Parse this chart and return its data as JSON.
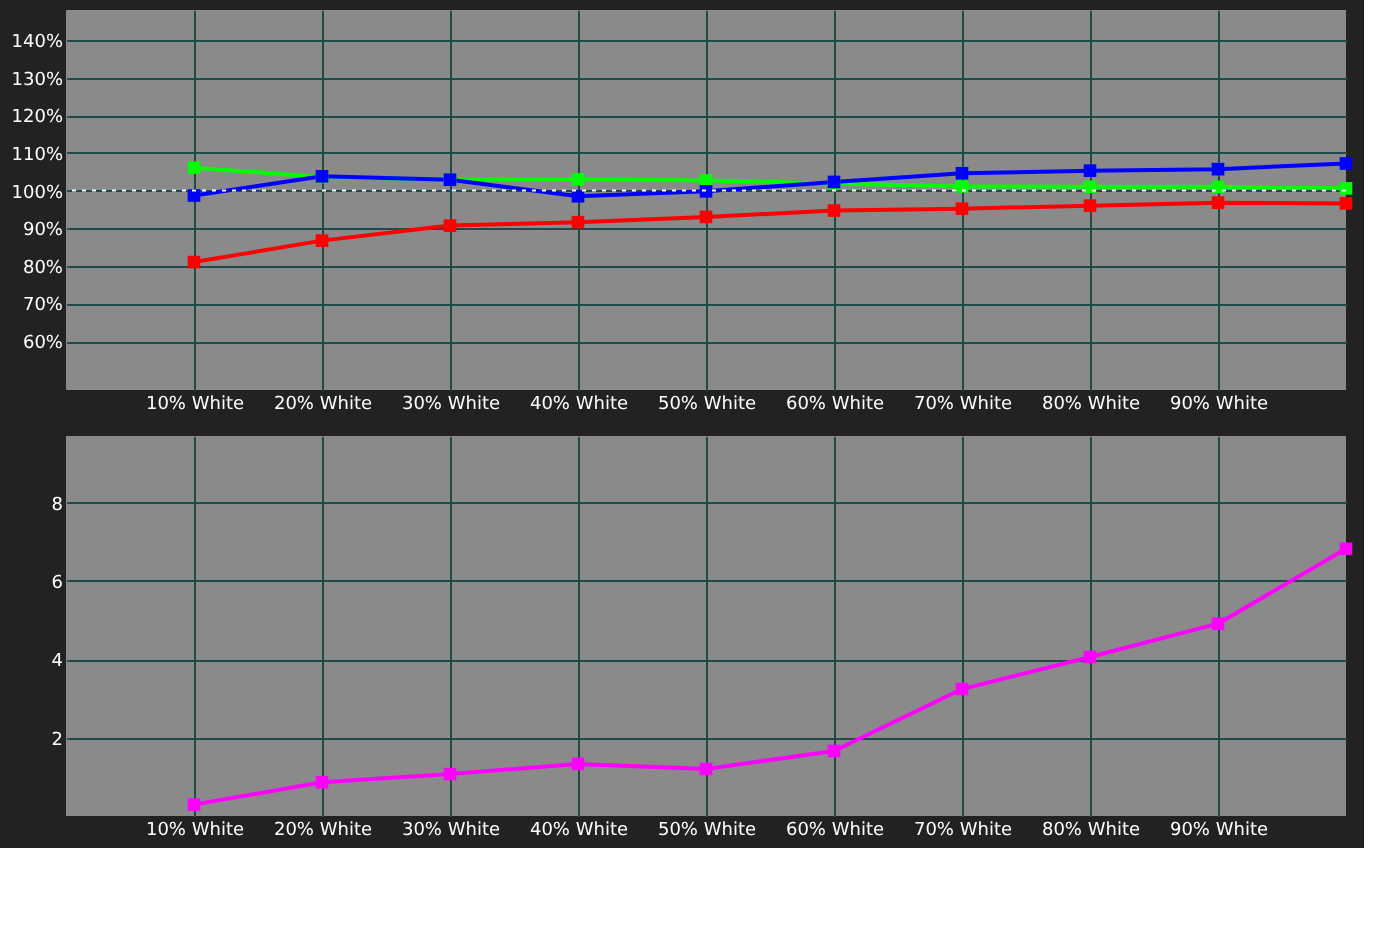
{
  "chart_data": [
    {
      "type": "line",
      "x": [
        10,
        20,
        30,
        40,
        50,
        60,
        70,
        80,
        90,
        100
      ],
      "series": [
        {
          "color": "#ff0000",
          "values": [
            81,
            86.7,
            90.7,
            91.6,
            93,
            94.7,
            95.2,
            96,
            96.8,
            96.6
          ]
        },
        {
          "color": "#00ff00",
          "values": [
            106.1,
            103.6,
            102.9,
            103,
            102.7,
            101.9,
            101.1,
            101,
            101,
            100.6
          ]
        },
        {
          "color": "#0000ff",
          "values": [
            98.7,
            103.8,
            102.9,
            98.5,
            99.8,
            102.3,
            104.6,
            105.3,
            105.7,
            107.2
          ]
        }
      ],
      "xlim": [
        0,
        100
      ],
      "xticks": [
        {
          "value": 10,
          "label": "10% White"
        },
        {
          "value": 20,
          "label": "20% White"
        },
        {
          "value": 30,
          "label": "30% White"
        },
        {
          "value": 40,
          "label": "40% White"
        },
        {
          "value": 50,
          "label": "50% White"
        },
        {
          "value": 60,
          "label": "60% White"
        },
        {
          "value": 70,
          "label": "70% White"
        },
        {
          "value": 80,
          "label": "80% White"
        },
        {
          "value": 90,
          "label": "90% White"
        }
      ],
      "ylim": [
        47,
        148
      ],
      "yticks": [
        {
          "value": 60,
          "label": "60%"
        },
        {
          "value": 70,
          "label": "70%"
        },
        {
          "value": 80,
          "label": "80%"
        },
        {
          "value": 90,
          "label": "90%"
        },
        {
          "value": 100,
          "label": "100%"
        },
        {
          "value": 110,
          "label": "110%"
        },
        {
          "value": 120,
          "label": "120%"
        },
        {
          "value": 130,
          "label": "130%"
        },
        {
          "value": 140,
          "label": "140%"
        }
      ],
      "ref_lines": [
        {
          "axis": "y",
          "value": 100,
          "color": "#ffffff",
          "line_style": "dotted"
        }
      ],
      "grid": true,
      "legend": false,
      "marker": "square",
      "line_style": "solid"
    },
    {
      "type": "line",
      "x": [
        10,
        20,
        30,
        40,
        50,
        60,
        70,
        80,
        90,
        100
      ],
      "series": [
        {
          "color": "#ff00ff",
          "values": [
            0.29,
            0.86,
            1.07,
            1.33,
            1.2,
            1.66,
            3.24,
            4.06,
            4.91,
            6.82
          ]
        }
      ],
      "xlim": [
        0,
        100
      ],
      "xticks": [
        {
          "value": 10,
          "label": "10% White"
        },
        {
          "value": 20,
          "label": "20% White"
        },
        {
          "value": 30,
          "label": "30% White"
        },
        {
          "value": 40,
          "label": "40% White"
        },
        {
          "value": 50,
          "label": "50% White"
        },
        {
          "value": 60,
          "label": "60% White"
        },
        {
          "value": 70,
          "label": "70% White"
        },
        {
          "value": 80,
          "label": "80% White"
        },
        {
          "value": 90,
          "label": "90% White"
        }
      ],
      "ylim": [
        0,
        9.7
      ],
      "yticks": [
        2,
        4,
        6,
        8
      ],
      "grid": true,
      "legend": false,
      "marker": "square",
      "line_style": "solid"
    }
  ]
}
